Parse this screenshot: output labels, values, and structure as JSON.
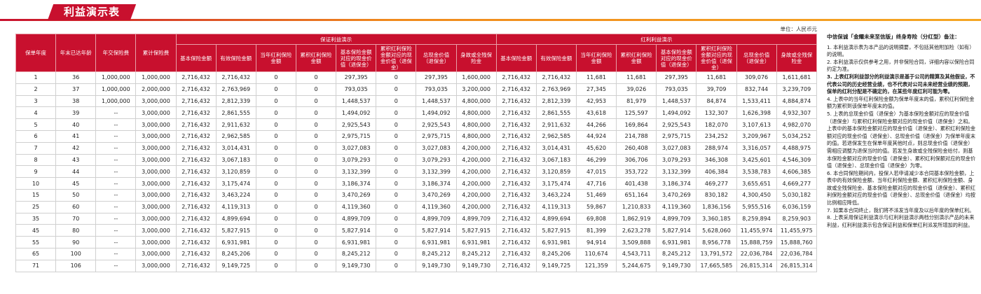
{
  "header": {
    "title": "利益演示表",
    "unit": "单位：人民币元"
  },
  "table": {
    "left_columns": [
      "保单年度",
      "年末已达年龄",
      "年交保险费",
      "累计保险费"
    ],
    "groups": [
      {
        "name": "保证利益演示",
        "columns": [
          "基本保险金额",
          "有效保险金额",
          "当年红利保险金额",
          "累积红利保险金额",
          "基本保险金额对应的现金价值（退保金）",
          "累积红利保险金额对应的现金价值（退保金）",
          "总现金价值（退保金）",
          "身故或全残保险金"
        ]
      },
      {
        "name": "红利利益演示",
        "columns": [
          "基本保险金额",
          "有效保险金额",
          "当年红利保险金额",
          "累积红利保险金额",
          "基本保险金额对应的现金价值（退保金）",
          "累积红利保险金额对应的现金价值（退保金）",
          "总现金价值（退保金）",
          "身故或全残保险金"
        ]
      }
    ],
    "rows": [
      [
        "1",
        "36",
        "1,000,000",
        "1,000,000",
        "2,716,432",
        "2,716,432",
        "0",
        "0",
        "297,395",
        "0",
        "297,395",
        "1,600,000",
        "2,716,432",
        "2,716,432",
        "11,681",
        "11,681",
        "297,395",
        "11,681",
        "309,076",
        "1,611,681"
      ],
      [
        "2",
        "37",
        "1,000,000",
        "2,000,000",
        "2,716,432",
        "2,763,969",
        "0",
        "0",
        "793,035",
        "0",
        "793,035",
        "3,200,000",
        "2,716,432",
        "2,763,969",
        "27,345",
        "39,026",
        "793,035",
        "39,709",
        "832,744",
        "3,239,709"
      ],
      [
        "3",
        "38",
        "1,000,000",
        "3,000,000",
        "2,716,432",
        "2,812,339",
        "0",
        "0",
        "1,448,537",
        "0",
        "1,448,537",
        "4,800,000",
        "2,716,432",
        "2,812,339",
        "42,953",
        "81,979",
        "1,448,537",
        "84,874",
        "1,533,411",
        "4,884,874"
      ],
      [
        "4",
        "39",
        "--",
        "3,000,000",
        "2,716,432",
        "2,861,555",
        "0",
        "0",
        "1,494,092",
        "0",
        "1,494,092",
        "4,800,000",
        "2,716,432",
        "2,861,555",
        "43,618",
        "125,597",
        "1,494,092",
        "132,307",
        "1,626,398",
        "4,932,307"
      ],
      [
        "5",
        "40",
        "--",
        "3,000,000",
        "2,716,432",
        "2,911,632",
        "0",
        "0",
        "2,925,543",
        "0",
        "2,925,543",
        "4,800,000",
        "2,716,432",
        "2,911,632",
        "44,266",
        "169,864",
        "2,925,543",
        "182,070",
        "3,107,613",
        "4,982,070"
      ],
      [
        "6",
        "41",
        "--",
        "3,000,000",
        "2,716,432",
        "2,962,585",
        "0",
        "0",
        "2,975,715",
        "0",
        "2,975,715",
        "4,800,000",
        "2,716,432",
        "2,962,585",
        "44,924",
        "214,788",
        "2,975,715",
        "234,252",
        "3,209,967",
        "5,034,252"
      ],
      [
        "7",
        "42",
        "--",
        "3,000,000",
        "2,716,432",
        "3,014,431",
        "0",
        "0",
        "3,027,083",
        "0",
        "3,027,083",
        "4,200,000",
        "2,716,432",
        "3,014,431",
        "45,620",
        "260,408",
        "3,027,083",
        "288,974",
        "3,316,057",
        "4,488,975"
      ],
      [
        "8",
        "43",
        "--",
        "3,000,000",
        "2,716,432",
        "3,067,183",
        "0",
        "0",
        "3,079,293",
        "0",
        "3,079,293",
        "4,200,000",
        "2,716,432",
        "3,067,183",
        "46,299",
        "306,706",
        "3,079,293",
        "346,308",
        "3,425,601",
        "4,546,309"
      ],
      [
        "9",
        "44",
        "--",
        "3,000,000",
        "2,716,432",
        "3,120,859",
        "0",
        "0",
        "3,132,399",
        "0",
        "3,132,399",
        "4,200,000",
        "2,716,432",
        "3,120,859",
        "47,015",
        "353,722",
        "3,132,399",
        "406,384",
        "3,538,783",
        "4,606,385"
      ],
      [
        "10",
        "45",
        "--",
        "3,000,000",
        "2,716,432",
        "3,175,474",
        "0",
        "0",
        "3,186,374",
        "0",
        "3,186,374",
        "4,200,000",
        "2,716,432",
        "3,175,474",
        "47,716",
        "401,438",
        "3,186,374",
        "469,277",
        "3,655,651",
        "4,669,277"
      ],
      [
        "15",
        "50",
        "--",
        "3,000,000",
        "2,716,432",
        "3,463,224",
        "0",
        "0",
        "3,470,269",
        "0",
        "3,470,269",
        "4,200,000",
        "2,716,432",
        "3,463,224",
        "51,469",
        "651,164",
        "3,470,269",
        "830,182",
        "4,300,450",
        "5,030,182"
      ],
      [
        "25",
        "60",
        "--",
        "3,000,000",
        "2,716,432",
        "4,119,313",
        "0",
        "0",
        "4,119,360",
        "0",
        "4,119,360",
        "4,200,000",
        "2,716,432",
        "4,119,313",
        "59,867",
        "1,210,833",
        "4,119,360",
        "1,836,156",
        "5,955,516",
        "6,036,159"
      ],
      [
        "35",
        "70",
        "--",
        "3,000,000",
        "2,716,432",
        "4,899,694",
        "0",
        "0",
        "4,899,709",
        "0",
        "4,899,709",
        "4,899,709",
        "2,716,432",
        "4,899,694",
        "69,808",
        "1,862,919",
        "4,899,709",
        "3,360,185",
        "8,259,894",
        "8,259,903"
      ],
      [
        "45",
        "80",
        "--",
        "3,000,000",
        "2,716,432",
        "5,827,915",
        "0",
        "0",
        "5,827,914",
        "0",
        "5,827,914",
        "5,827,915",
        "2,716,432",
        "5,827,915",
        "81,399",
        "2,623,278",
        "5,827,914",
        "5,628,060",
        "11,455,974",
        "11,455,975"
      ],
      [
        "55",
        "90",
        "--",
        "3,000,000",
        "2,716,432",
        "6,931,981",
        "0",
        "0",
        "6,931,981",
        "0",
        "6,931,981",
        "6,931,981",
        "2,716,432",
        "6,931,981",
        "94,914",
        "3,509,888",
        "6,931,981",
        "8,956,778",
        "15,888,759",
        "15,888,760"
      ],
      [
        "65",
        "100",
        "--",
        "3,000,000",
        "2,716,432",
        "8,245,206",
        "0",
        "0",
        "8,245,212",
        "0",
        "8,245,212",
        "8,245,212",
        "2,716,432",
        "8,245,206",
        "110,674",
        "4,543,711",
        "8,245,212",
        "13,791,572",
        "22,036,784",
        "22,036,784"
      ],
      [
        "71",
        "106",
        "--",
        "3,000,000",
        "2,716,432",
        "9,149,725",
        "0",
        "0",
        "9,149,730",
        "0",
        "9,149,730",
        "9,149,730",
        "2,716,432",
        "9,149,725",
        "121,359",
        "5,244,675",
        "9,149,730",
        "17,665,585",
        "26,815,314",
        "26,815,314"
      ]
    ]
  },
  "notes": {
    "title": "中信保诚「金耀未来至信版」终身寿险（分红型）备注：",
    "items": [
      "1. 本利益演示表为本产品的说明摘要，不包括其他附加险（如有）的说明。",
      "2. 本利益演示仅供参考之用，并非保险合同，详细内容以保险合同约定为准。",
      "3. 上表红利利益部分的利益演示是基于公司的精算及其他假设，不代表公司的历史经营业绩，也不代表对公司未来经营业绩的预期，保单的红利分配是不确定的，在某些年度红利可能为零。",
      "4. 上表中的当年红利保险金额为保单年度末的值，累积红利保险金额为累积到该保单年度末的值。",
      "5. 上表的总现金价值（退保金）为基本保险金额对应的现金价值（退保金）与累积红利保险金额对应的现金价值（退保金）之和。上表中的基本保险金额对应的现金价值（退保金）、累积红利保险金额对应的现金价值（退保金）、总现金价值（退保金）为保单年度末的值。若退保发生在保单年度其他时点，则总现金价值（退保金）需相应调整为退保当时的值。若发生身故或全残保险金给付，则基本保险金额对应的现金价值（退保金）、累积红利保额对应的现金价值（退保金）、总现金价值（退保金）为零。",
      "6. 本合同保险期间内，投保人若申请减少本合同基本保险金额，上表中的有效保险金额、当年红利保险金额、累积红利保险金额、身故或全残保险金、基本保险金额对应的现金价值（退保金）、累积红利保险金额对应的现金价值（退保金）、总现金价值（退保金）均按比例相应降低。",
      "7. 如果本合同终止，我们将不派发当年度及以后年度的保单红利。",
      "8. 上表采用保证利益演示与红利利益演示两档分别演示产品的未来利益，红利利益演示包含保证利益和保单红利派发所增加的利益。"
    ]
  }
}
